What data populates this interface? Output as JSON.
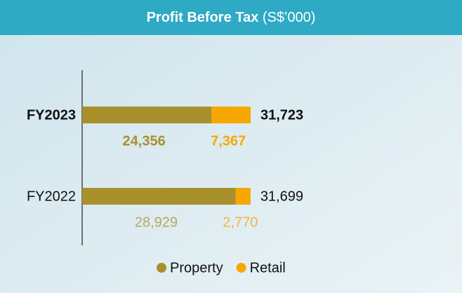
{
  "chart_data": {
    "type": "stacked-bar-horizontal",
    "title": "Profit Before Tax",
    "title_unit": "(S$’000)",
    "categories": [
      "FY2023",
      "FY2022"
    ],
    "series": [
      {
        "name": "Property",
        "color": "#a8902c",
        "values": [
          24356,
          28929
        ],
        "value_labels": [
          "24,356",
          "28,929"
        ]
      },
      {
        "name": "Retail",
        "color": "#f6a800",
        "values": [
          7367,
          2770
        ],
        "value_labels": [
          "7,367",
          "2,770"
        ]
      }
    ],
    "totals": [
      31723,
      31699
    ],
    "total_labels": [
      "31,723",
      "31,699"
    ]
  }
}
